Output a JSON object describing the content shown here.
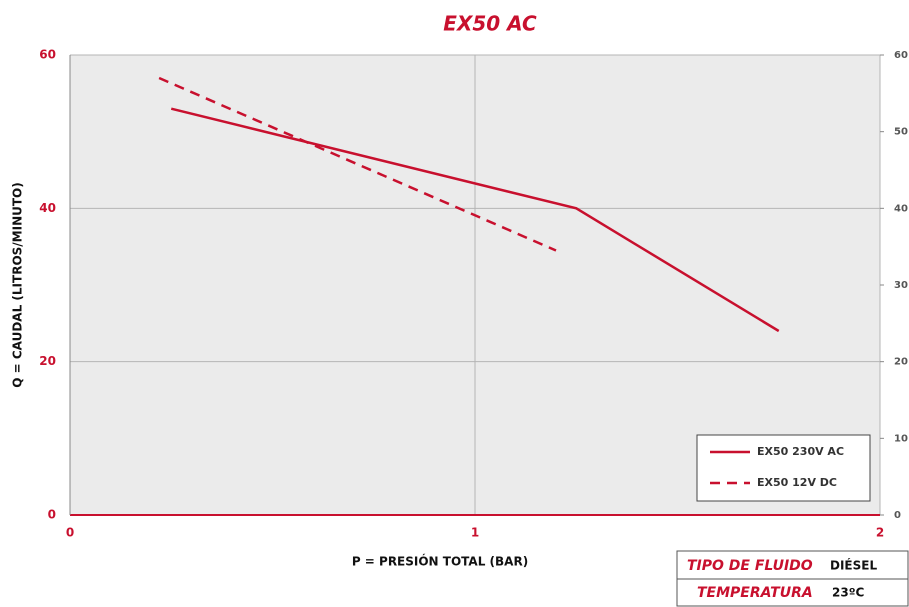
{
  "chart_data": {
    "type": "line",
    "title": "EX50 AC",
    "xlabel": "P = PRESIÓN TOTAL (BAR)",
    "ylabel": "Q = CAUDAL (LITROS/MINUTO)",
    "xlim": [
      0,
      2
    ],
    "xticks": [
      0,
      1,
      2
    ],
    "ylim": [
      0,
      60
    ],
    "yticks": [
      0,
      20,
      40,
      60
    ],
    "y2lim": [
      0,
      60
    ],
    "y2ticks": [
      0,
      10,
      20,
      30,
      40,
      50,
      60
    ],
    "grid": true,
    "legend": "lower right",
    "series": [
      {
        "name": "EX50 230V AC",
        "color": "#c8102e",
        "dash": false,
        "x": [
          0.25,
          1.25,
          1.75
        ],
        "values": [
          53,
          40,
          24
        ]
      },
      {
        "name": "EX50 12V DC",
        "color": "#c8102e",
        "dash": true,
        "x": [
          0.22,
          1.2
        ],
        "values": [
          57,
          34.5
        ]
      }
    ]
  },
  "info_table": {
    "rows": [
      [
        "TIPO DE FLUIDO",
        "DIÉSEL"
      ],
      [
        "TEMPERATURA",
        "23ºC"
      ]
    ]
  }
}
